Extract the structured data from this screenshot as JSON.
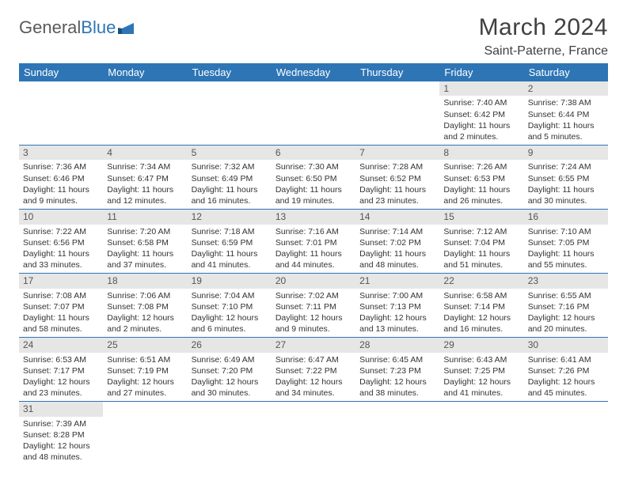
{
  "logo": {
    "word1": "General",
    "word2": "Blue"
  },
  "title": "March 2024",
  "location": "Saint-Paterne, France",
  "colors": {
    "header_bg": "#2e75b6",
    "header_text": "#ffffff",
    "daynum_bg": "#e6e6e6",
    "row_border": "#2e75b6",
    "title_color": "#404040"
  },
  "weekdays": [
    "Sunday",
    "Monday",
    "Tuesday",
    "Wednesday",
    "Thursday",
    "Friday",
    "Saturday"
  ],
  "weeks": [
    [
      {
        "n": "",
        "sr": "",
        "ss": "",
        "dl": ""
      },
      {
        "n": "",
        "sr": "",
        "ss": "",
        "dl": ""
      },
      {
        "n": "",
        "sr": "",
        "ss": "",
        "dl": ""
      },
      {
        "n": "",
        "sr": "",
        "ss": "",
        "dl": ""
      },
      {
        "n": "",
        "sr": "",
        "ss": "",
        "dl": ""
      },
      {
        "n": "1",
        "sr": "Sunrise: 7:40 AM",
        "ss": "Sunset: 6:42 PM",
        "dl": "Daylight: 11 hours and 2 minutes."
      },
      {
        "n": "2",
        "sr": "Sunrise: 7:38 AM",
        "ss": "Sunset: 6:44 PM",
        "dl": "Daylight: 11 hours and 5 minutes."
      }
    ],
    [
      {
        "n": "3",
        "sr": "Sunrise: 7:36 AM",
        "ss": "Sunset: 6:46 PM",
        "dl": "Daylight: 11 hours and 9 minutes."
      },
      {
        "n": "4",
        "sr": "Sunrise: 7:34 AM",
        "ss": "Sunset: 6:47 PM",
        "dl": "Daylight: 11 hours and 12 minutes."
      },
      {
        "n": "5",
        "sr": "Sunrise: 7:32 AM",
        "ss": "Sunset: 6:49 PM",
        "dl": "Daylight: 11 hours and 16 minutes."
      },
      {
        "n": "6",
        "sr": "Sunrise: 7:30 AM",
        "ss": "Sunset: 6:50 PM",
        "dl": "Daylight: 11 hours and 19 minutes."
      },
      {
        "n": "7",
        "sr": "Sunrise: 7:28 AM",
        "ss": "Sunset: 6:52 PM",
        "dl": "Daylight: 11 hours and 23 minutes."
      },
      {
        "n": "8",
        "sr": "Sunrise: 7:26 AM",
        "ss": "Sunset: 6:53 PM",
        "dl": "Daylight: 11 hours and 26 minutes."
      },
      {
        "n": "9",
        "sr": "Sunrise: 7:24 AM",
        "ss": "Sunset: 6:55 PM",
        "dl": "Daylight: 11 hours and 30 minutes."
      }
    ],
    [
      {
        "n": "10",
        "sr": "Sunrise: 7:22 AM",
        "ss": "Sunset: 6:56 PM",
        "dl": "Daylight: 11 hours and 33 minutes."
      },
      {
        "n": "11",
        "sr": "Sunrise: 7:20 AM",
        "ss": "Sunset: 6:58 PM",
        "dl": "Daylight: 11 hours and 37 minutes."
      },
      {
        "n": "12",
        "sr": "Sunrise: 7:18 AM",
        "ss": "Sunset: 6:59 PM",
        "dl": "Daylight: 11 hours and 41 minutes."
      },
      {
        "n": "13",
        "sr": "Sunrise: 7:16 AM",
        "ss": "Sunset: 7:01 PM",
        "dl": "Daylight: 11 hours and 44 minutes."
      },
      {
        "n": "14",
        "sr": "Sunrise: 7:14 AM",
        "ss": "Sunset: 7:02 PM",
        "dl": "Daylight: 11 hours and 48 minutes."
      },
      {
        "n": "15",
        "sr": "Sunrise: 7:12 AM",
        "ss": "Sunset: 7:04 PM",
        "dl": "Daylight: 11 hours and 51 minutes."
      },
      {
        "n": "16",
        "sr": "Sunrise: 7:10 AM",
        "ss": "Sunset: 7:05 PM",
        "dl": "Daylight: 11 hours and 55 minutes."
      }
    ],
    [
      {
        "n": "17",
        "sr": "Sunrise: 7:08 AM",
        "ss": "Sunset: 7:07 PM",
        "dl": "Daylight: 11 hours and 58 minutes."
      },
      {
        "n": "18",
        "sr": "Sunrise: 7:06 AM",
        "ss": "Sunset: 7:08 PM",
        "dl": "Daylight: 12 hours and 2 minutes."
      },
      {
        "n": "19",
        "sr": "Sunrise: 7:04 AM",
        "ss": "Sunset: 7:10 PM",
        "dl": "Daylight: 12 hours and 6 minutes."
      },
      {
        "n": "20",
        "sr": "Sunrise: 7:02 AM",
        "ss": "Sunset: 7:11 PM",
        "dl": "Daylight: 12 hours and 9 minutes."
      },
      {
        "n": "21",
        "sr": "Sunrise: 7:00 AM",
        "ss": "Sunset: 7:13 PM",
        "dl": "Daylight: 12 hours and 13 minutes."
      },
      {
        "n": "22",
        "sr": "Sunrise: 6:58 AM",
        "ss": "Sunset: 7:14 PM",
        "dl": "Daylight: 12 hours and 16 minutes."
      },
      {
        "n": "23",
        "sr": "Sunrise: 6:55 AM",
        "ss": "Sunset: 7:16 PM",
        "dl": "Daylight: 12 hours and 20 minutes."
      }
    ],
    [
      {
        "n": "24",
        "sr": "Sunrise: 6:53 AM",
        "ss": "Sunset: 7:17 PM",
        "dl": "Daylight: 12 hours and 23 minutes."
      },
      {
        "n": "25",
        "sr": "Sunrise: 6:51 AM",
        "ss": "Sunset: 7:19 PM",
        "dl": "Daylight: 12 hours and 27 minutes."
      },
      {
        "n": "26",
        "sr": "Sunrise: 6:49 AM",
        "ss": "Sunset: 7:20 PM",
        "dl": "Daylight: 12 hours and 30 minutes."
      },
      {
        "n": "27",
        "sr": "Sunrise: 6:47 AM",
        "ss": "Sunset: 7:22 PM",
        "dl": "Daylight: 12 hours and 34 minutes."
      },
      {
        "n": "28",
        "sr": "Sunrise: 6:45 AM",
        "ss": "Sunset: 7:23 PM",
        "dl": "Daylight: 12 hours and 38 minutes."
      },
      {
        "n": "29",
        "sr": "Sunrise: 6:43 AM",
        "ss": "Sunset: 7:25 PM",
        "dl": "Daylight: 12 hours and 41 minutes."
      },
      {
        "n": "30",
        "sr": "Sunrise: 6:41 AM",
        "ss": "Sunset: 7:26 PM",
        "dl": "Daylight: 12 hours and 45 minutes."
      }
    ],
    [
      {
        "n": "31",
        "sr": "Sunrise: 7:39 AM",
        "ss": "Sunset: 8:28 PM",
        "dl": "Daylight: 12 hours and 48 minutes."
      },
      {
        "n": "",
        "sr": "",
        "ss": "",
        "dl": ""
      },
      {
        "n": "",
        "sr": "",
        "ss": "",
        "dl": ""
      },
      {
        "n": "",
        "sr": "",
        "ss": "",
        "dl": ""
      },
      {
        "n": "",
        "sr": "",
        "ss": "",
        "dl": ""
      },
      {
        "n": "",
        "sr": "",
        "ss": "",
        "dl": ""
      },
      {
        "n": "",
        "sr": "",
        "ss": "",
        "dl": ""
      }
    ]
  ]
}
